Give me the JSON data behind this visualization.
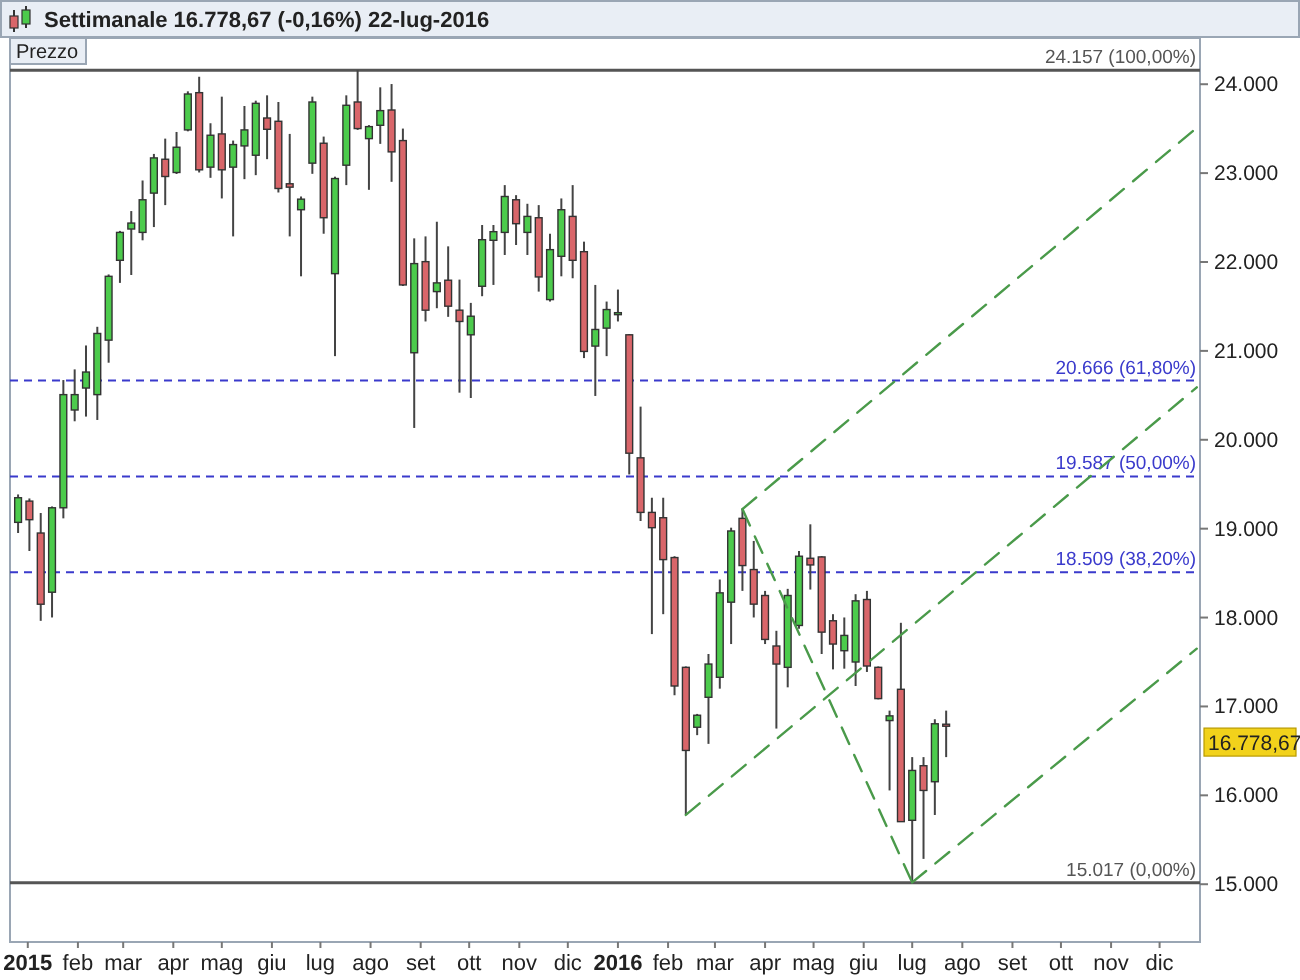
{
  "chart_data": {
    "type": "candlestick",
    "title": "Settimanale   16.778,67 (-0,16%)   22-lug-2016",
    "ylabel": "Prezzo",
    "xlim": [
      "2014-12-21",
      "2016-12-26"
    ],
    "ylim": [
      14350,
      24520
    ],
    "xticks": [
      {
        "value": "2015-01-01",
        "label": "2015"
      },
      {
        "value": "2015-02-01",
        "label": "feb"
      },
      {
        "value": "2015-03-01",
        "label": "mar"
      },
      {
        "value": "2015-04-01",
        "label": "apr"
      },
      {
        "value": "2015-05-01",
        "label": "mag"
      },
      {
        "value": "2015-06-01",
        "label": "giu"
      },
      {
        "value": "2015-07-01",
        "label": "lug"
      },
      {
        "value": "2015-08-01",
        "label": "ago"
      },
      {
        "value": "2015-09-01",
        "label": "set"
      },
      {
        "value": "2015-10-01",
        "label": "ott"
      },
      {
        "value": "2015-11-01",
        "label": "nov"
      },
      {
        "value": "2015-12-01",
        "label": "dic"
      },
      {
        "value": "2016-01-01",
        "label": "2016"
      },
      {
        "value": "2016-02-01",
        "label": "feb"
      },
      {
        "value": "2016-03-01",
        "label": "mar"
      },
      {
        "value": "2016-04-01",
        "label": "apr"
      },
      {
        "value": "2016-05-01",
        "label": "mag"
      },
      {
        "value": "2016-06-01",
        "label": "giu"
      },
      {
        "value": "2016-07-01",
        "label": "lug"
      },
      {
        "value": "2016-08-01",
        "label": "ago"
      },
      {
        "value": "2016-09-01",
        "label": "set"
      },
      {
        "value": "2016-10-01",
        "label": "ott"
      },
      {
        "value": "2016-11-01",
        "label": "nov"
      },
      {
        "value": "2016-12-01",
        "label": "dic"
      }
    ],
    "yticks": [
      {
        "value": 15000,
        "label": "15.000"
      },
      {
        "value": 16000,
        "label": "16.000"
      },
      {
        "value": 17000,
        "label": "17.000"
      },
      {
        "value": 18000,
        "label": "18.000"
      },
      {
        "value": 19000,
        "label": "19.000"
      },
      {
        "value": 20000,
        "label": "20.000"
      },
      {
        "value": 21000,
        "label": "21.000"
      },
      {
        "value": 22000,
        "label": "22.000"
      },
      {
        "value": 23000,
        "label": "23.000"
      },
      {
        "value": 24000,
        "label": "24.000"
      }
    ],
    "ref_lines": [
      {
        "axis": "y",
        "value": 24157,
        "label": "24.157 (100,00%)",
        "color": "#555555",
        "line_style": "solid"
      },
      {
        "axis": "y",
        "value": 20666,
        "label": "20.666 (61,80%)",
        "color": "#3a3acc",
        "line_style": "dashed"
      },
      {
        "axis": "y",
        "value": 19587,
        "label": "19.587 (50,00%)",
        "color": "#3a3acc",
        "line_style": "dashed"
      },
      {
        "axis": "y",
        "value": 18509,
        "label": "18.509 (38,20%)",
        "color": "#3a3acc",
        "line_style": "dashed"
      },
      {
        "axis": "y",
        "value": 15017,
        "label": "15.017 (0,00%)",
        "color": "#555555",
        "line_style": "solid"
      }
    ],
    "annotations": [
      "16.778,67"
    ],
    "series": [
      {
        "x": [
          "2014-12-26",
          "2015-01-02",
          "2015-01-09",
          "2015-01-16",
          "2015-01-23",
          "2015-01-30",
          "2015-02-06",
          "2015-02-13",
          "2015-02-20",
          "2015-02-27",
          "2015-03-06",
          "2015-03-13",
          "2015-03-20",
          "2015-03-27",
          "2015-04-03",
          "2015-04-10",
          "2015-04-17",
          "2015-04-24",
          "2015-05-01",
          "2015-05-08",
          "2015-05-15",
          "2015-05-22",
          "2015-05-29",
          "2015-06-05",
          "2015-06-12",
          "2015-06-19",
          "2015-06-26",
          "2015-07-03",
          "2015-07-10",
          "2015-07-17",
          "2015-07-24",
          "2015-07-31",
          "2015-08-07",
          "2015-08-14",
          "2015-08-21",
          "2015-08-28",
          "2015-09-04",
          "2015-09-11",
          "2015-09-18",
          "2015-09-25",
          "2015-10-02",
          "2015-10-09",
          "2015-10-16",
          "2015-10-23",
          "2015-10-30",
          "2015-11-06",
          "2015-11-13",
          "2015-11-20",
          "2015-11-27",
          "2015-12-04",
          "2015-12-11",
          "2015-12-18",
          "2015-12-25",
          "2016-01-01",
          "2016-01-08",
          "2016-01-15",
          "2016-01-22",
          "2016-01-29",
          "2016-02-05",
          "2016-02-12",
          "2016-02-19",
          "2016-02-26",
          "2016-03-04",
          "2016-03-11",
          "2016-03-18",
          "2016-03-25",
          "2016-04-01",
          "2016-04-08",
          "2016-04-15",
          "2016-04-22",
          "2016-04-29",
          "2016-05-06",
          "2016-05-13",
          "2016-05-20",
          "2016-05-27",
          "2016-06-03",
          "2016-06-10",
          "2016-06-17",
          "2016-06-24",
          "2016-07-01",
          "2016-07-08",
          "2016-07-15",
          "2016-07-22"
        ],
        "ohlc": [
          [
            19071,
            19385,
            18951,
            19348
          ],
          [
            19310,
            19340,
            18749,
            19101
          ],
          [
            18951,
            19176,
            17963,
            18150
          ],
          [
            18285,
            19250,
            18001,
            19235
          ],
          [
            19235,
            20672,
            19116,
            20508
          ],
          [
            20335,
            20792,
            20208,
            20508
          ],
          [
            20582,
            21061,
            20261,
            20762
          ],
          [
            20508,
            21271,
            20223,
            21196
          ],
          [
            21121,
            21860,
            20867,
            21839
          ],
          [
            22019,
            22350,
            21765,
            22333
          ],
          [
            22371,
            22573,
            21854,
            22438
          ],
          [
            22333,
            22917,
            22244,
            22700
          ],
          [
            22775,
            23216,
            22393,
            23171
          ],
          [
            23156,
            23388,
            22640,
            22962
          ],
          [
            23007,
            23463,
            22990,
            23291
          ],
          [
            23486,
            23920,
            23470,
            23890
          ],
          [
            23905,
            24084,
            23007,
            23037
          ],
          [
            23067,
            23561,
            22947,
            23426
          ],
          [
            23441,
            23860,
            22715,
            23037
          ],
          [
            23067,
            23366,
            22288,
            23321
          ],
          [
            23306,
            23755,
            22932,
            23486
          ],
          [
            23201,
            23815,
            22977,
            23785
          ],
          [
            23620,
            23875,
            23157,
            23493
          ],
          [
            23583,
            23800,
            22782,
            22827
          ],
          [
            22880,
            23441,
            22288,
            22842
          ],
          [
            22588,
            22737,
            21839,
            22707
          ],
          [
            23112,
            23860,
            22992,
            23800
          ],
          [
            23336,
            23411,
            22318,
            22498
          ],
          [
            21869,
            22960,
            20941,
            22939
          ],
          [
            23089,
            23875,
            22865,
            23763
          ],
          [
            23800,
            24157,
            23486,
            23501
          ],
          [
            23388,
            23540,
            22812,
            23523
          ],
          [
            23538,
            23965,
            23329,
            23703
          ],
          [
            23710,
            24002,
            22902,
            23239
          ],
          [
            23366,
            23501,
            21730,
            21742
          ],
          [
            20979,
            22266,
            20133,
            21982
          ],
          [
            22004,
            22288,
            21331,
            21458
          ],
          [
            21667,
            22453,
            21480,
            21765
          ],
          [
            21795,
            22176,
            21383,
            21503
          ],
          [
            21458,
            21802,
            20530,
            21331
          ],
          [
            21181,
            21540,
            20470,
            21390
          ],
          [
            21727,
            22416,
            21615,
            22251
          ],
          [
            22244,
            22416,
            21742,
            22341
          ],
          [
            22333,
            22865,
            22079,
            22737
          ],
          [
            22700,
            22752,
            22191,
            22431
          ],
          [
            22333,
            22655,
            22079,
            22513
          ],
          [
            22498,
            22640,
            21667,
            21832
          ],
          [
            21577,
            22318,
            21555,
            22139
          ],
          [
            22064,
            22715,
            21839,
            22588
          ],
          [
            22513,
            22865,
            21817,
            22019
          ],
          [
            22116,
            22229,
            20919,
            20994
          ],
          [
            21054,
            21742,
            20493,
            21241
          ],
          [
            21256,
            21555,
            20941,
            21465
          ],
          [
            21420,
            21690,
            21331,
            21430
          ],
          [
            21181,
            21190,
            19610,
            19849
          ],
          [
            19797,
            20373,
            19086,
            19183
          ],
          [
            19183,
            19348,
            17814,
            19011
          ],
          [
            19123,
            19348,
            18038,
            18652
          ],
          [
            18675,
            18690,
            17126,
            17230
          ],
          [
            17440,
            17450,
            15779,
            16505
          ],
          [
            16766,
            16916,
            16677,
            16901
          ],
          [
            17103,
            17590,
            16579,
            17477
          ],
          [
            17328,
            18428,
            17200,
            18278
          ],
          [
            18173,
            19011,
            17702,
            18974
          ],
          [
            19116,
            19221,
            18300,
            18585
          ],
          [
            18540,
            18862,
            18001,
            18151
          ],
          [
            18248,
            18300,
            17702,
            17754
          ],
          [
            17680,
            17851,
            16751,
            17477
          ],
          [
            17440,
            18323,
            17215,
            18248
          ],
          [
            17911,
            18749,
            17874,
            18690
          ],
          [
            18667,
            19049,
            18315,
            18592
          ],
          [
            18682,
            18690,
            17590,
            17836
          ],
          [
            17964,
            18038,
            17417,
            17702
          ],
          [
            17627,
            18001,
            17425,
            17799
          ],
          [
            17500,
            18263,
            17230,
            18188
          ],
          [
            18203,
            18300,
            17388,
            17455
          ],
          [
            17440,
            17450,
            17080,
            17088
          ],
          [
            16841,
            16953,
            16055,
            16894
          ],
          [
            17193,
            17941,
            15700,
            15704
          ],
          [
            15719,
            16430,
            15017,
            16280
          ],
          [
            16333,
            16430,
            15285,
            16055
          ],
          [
            16153,
            16856,
            15779,
            16805
          ],
          [
            16800,
            16953,
            16430,
            16779
          ]
        ],
        "colors": [
          "#4ccb4c",
          "#d9666a",
          "#d9666a",
          "#4ccb4c",
          "#4ccb4c",
          "#4ccb4c",
          "#4ccb4c",
          "#4ccb4c",
          "#4ccb4c",
          "#4ccb4c",
          "#4ccb4c",
          "#4ccb4c",
          "#4ccb4c",
          "#d9666a",
          "#4ccb4c",
          "#4ccb4c",
          "#d9666a",
          "#4ccb4c",
          "#d9666a",
          "#4ccb4c",
          "#4ccb4c",
          "#4ccb4c",
          "#d9666a",
          "#d9666a",
          "#d9666a",
          "#4ccb4c",
          "#4ccb4c",
          "#d9666a",
          "#4ccb4c",
          "#4ccb4c",
          "#d9666a",
          "#4ccb4c",
          "#4ccb4c",
          "#d9666a",
          "#d9666a",
          "#4ccb4c",
          "#d9666a",
          "#4ccb4c",
          "#d9666a",
          "#d9666a",
          "#4ccb4c",
          "#4ccb4c",
          "#4ccb4c",
          "#4ccb4c",
          "#d9666a",
          "#4ccb4c",
          "#d9666a",
          "#4ccb4c",
          "#4ccb4c",
          "#d9666a",
          "#d9666a",
          "#4ccb4c",
          "#4ccb4c",
          "#4ccb4c",
          "#d9666a",
          "#d9666a",
          "#d9666a",
          "#d9666a",
          "#d9666a",
          "#d9666a",
          "#4ccb4c",
          "#4ccb4c",
          "#4ccb4c",
          "#4ccb4c",
          "#d9666a",
          "#d9666a",
          "#d9666a",
          "#d9666a",
          "#4ccb4c",
          "#4ccb4c",
          "#d9666a",
          "#d9666a",
          "#d9666a",
          "#4ccb4c",
          "#4ccb4c",
          "#d9666a",
          "#d9666a",
          "#4ccb4c",
          "#d9666a",
          "#4ccb4c",
          "#d9666a",
          "#4ccb4c",
          "#d9666a"
        ]
      },
      {
        "type": "line",
        "color": "#4a9a4a",
        "line_style": "dashed",
        "x": [
          "2016-03-18",
          "2016-07-01"
        ],
        "values": [
          19220,
          15020
        ]
      },
      {
        "type": "line",
        "color": "#4a9a4a",
        "line_style": "dashed",
        "x": [
          "2016-03-18",
          "2016-12-24"
        ],
        "values": [
          19220,
          23510
        ]
      },
      {
        "type": "line",
        "color": "#4a9a4a",
        "line_style": "dashed",
        "x": [
          "2016-02-12",
          "2016-12-24"
        ],
        "values": [
          15780,
          20590
        ]
      },
      {
        "type": "line",
        "color": "#4a9a4a",
        "line_style": "dashed",
        "x": [
          "2016-07-01",
          "2016-12-24"
        ],
        "values": [
          15020,
          17650
        ]
      }
    ]
  }
}
